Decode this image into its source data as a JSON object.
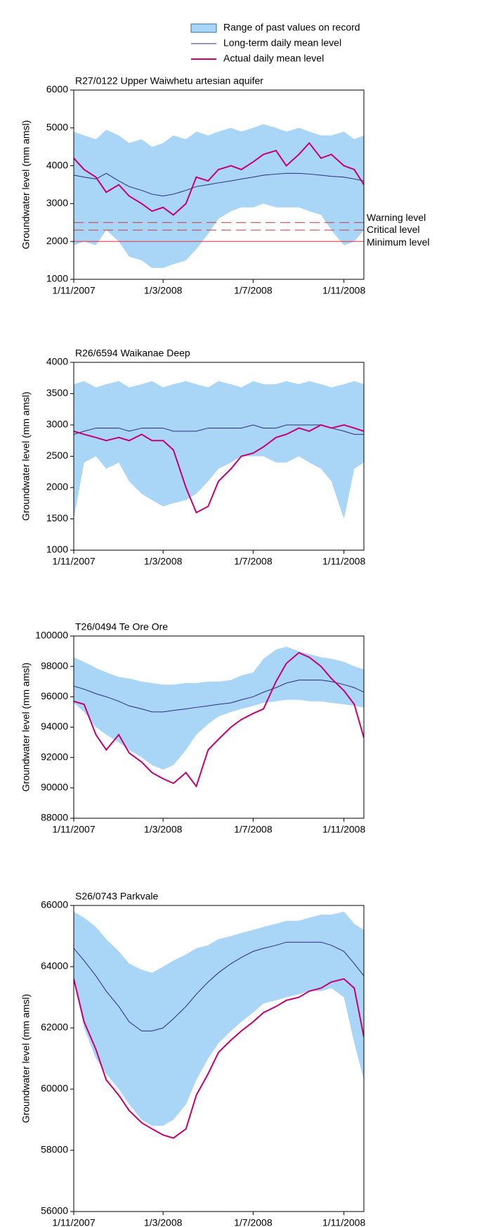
{
  "chart_data": [
    {
      "type": "line",
      "title": "R27/0122 Upper Waiwhetu artesian aquifer",
      "ylabel": "Groundwater level (mm amsl)",
      "x": [
        "1/11/2007",
        "15/11/2007",
        "1/12/2007",
        "15/12/2007",
        "1/1/2008",
        "15/1/2008",
        "1/2/2008",
        "15/2/2008",
        "1/3/2008",
        "15/3/2008",
        "1/4/2008",
        "15/4/2008",
        "1/5/2008",
        "15/5/2008",
        "1/6/2008",
        "15/6/2008",
        "1/7/2008",
        "15/7/2008",
        "1/8/2008",
        "15/8/2008",
        "1/9/2008",
        "15/9/2008",
        "1/10/2008",
        "15/10/2008",
        "1/11/2008",
        "15/11/2008",
        "28/11/2008"
      ],
      "xlim": [
        "1/11/2007",
        "28/11/2008"
      ],
      "xticks": [
        "1/11/2007",
        "1/3/2008",
        "1/7/2008",
        "1/11/2008"
      ],
      "ylim": [
        1000,
        6000
      ],
      "yticks": [
        1000,
        2000,
        3000,
        4000,
        5000,
        6000
      ],
      "series": [
        {
          "name": "Range of past values on record",
          "color": "#a9d5f7",
          "high": [
            4900,
            4800,
            4700,
            4950,
            4800,
            4600,
            4700,
            4500,
            4600,
            4800,
            4700,
            4900,
            4800,
            4900,
            5000,
            4900,
            5000,
            5100,
            5000,
            4900,
            5000,
            4900,
            4800,
            4800,
            4900,
            4700,
            4800
          ],
          "low": [
            1900,
            2000,
            1900,
            2300,
            2000,
            1600,
            1500,
            1300,
            1300,
            1400,
            1500,
            1800,
            2200,
            2600,
            2800,
            2900,
            2900,
            3000,
            2900,
            2900,
            2900,
            2800,
            2700,
            2300,
            1900,
            2000,
            2300
          ]
        },
        {
          "name": "Long-term daily mean level",
          "color": "#2b2b80",
          "values": [
            3750,
            3700,
            3650,
            3800,
            3600,
            3450,
            3350,
            3250,
            3200,
            3250,
            3350,
            3450,
            3500,
            3550,
            3600,
            3650,
            3700,
            3750,
            3780,
            3800,
            3800,
            3780,
            3750,
            3720,
            3700,
            3650,
            3600
          ]
        },
        {
          "name": "Actual daily mean level",
          "color": "#c8006e",
          "values": [
            4200,
            3900,
            3700,
            3300,
            3500,
            3200,
            3000,
            2800,
            2900,
            2700,
            3000,
            3700,
            3600,
            3900,
            4000,
            3900,
            4100,
            4300,
            4400,
            4000,
            4300,
            4600,
            4200,
            4300,
            4000,
            3900,
            3500
          ]
        }
      ],
      "reference_lines": [
        {
          "label": "Warning level",
          "value": 2500,
          "color": "#c0504d",
          "dashed": true
        },
        {
          "label": "Critical level",
          "value": 2300,
          "color": "#c0504d",
          "dashed": true
        },
        {
          "label": "Minimum level",
          "value": 2000,
          "color": "#e0404a",
          "dashed": false
        }
      ]
    },
    {
      "type": "line",
      "title": "R26/6594 Waikanae Deep",
      "ylabel": "Groundwater level (mm amsl)",
      "x": [
        "1/11/2007",
        "15/11/2007",
        "1/12/2007",
        "15/12/2007",
        "1/1/2008",
        "15/1/2008",
        "1/2/2008",
        "15/2/2008",
        "1/3/2008",
        "15/3/2008",
        "1/4/2008",
        "15/4/2008",
        "1/5/2008",
        "15/5/2008",
        "1/6/2008",
        "15/6/2008",
        "1/7/2008",
        "15/7/2008",
        "1/8/2008",
        "15/8/2008",
        "1/9/2008",
        "15/9/2008",
        "1/10/2008",
        "15/10/2008",
        "1/11/2008",
        "15/11/2008",
        "28/11/2008"
      ],
      "xlim": [
        "1/11/2007",
        "28/11/2008"
      ],
      "xticks": [
        "1/11/2007",
        "1/3/2008",
        "1/7/2008",
        "1/11/2008"
      ],
      "ylim": [
        1000,
        4000
      ],
      "yticks": [
        1000,
        1500,
        2000,
        2500,
        3000,
        3500,
        4000
      ],
      "series": [
        {
          "name": "Range of past values on record",
          "color": "#a9d5f7",
          "high": [
            3650,
            3700,
            3600,
            3650,
            3700,
            3600,
            3650,
            3700,
            3600,
            3650,
            3700,
            3650,
            3600,
            3700,
            3650,
            3600,
            3700,
            3650,
            3650,
            3700,
            3650,
            3700,
            3650,
            3600,
            3650,
            3700,
            3650
          ],
          "low": [
            1500,
            2400,
            2500,
            2300,
            2400,
            2100,
            1900,
            1800,
            1700,
            1750,
            1800,
            1900,
            2100,
            2300,
            2400,
            2500,
            2500,
            2500,
            2400,
            2400,
            2500,
            2400,
            2300,
            2100,
            1500,
            2300,
            2400
          ]
        },
        {
          "name": "Long-term daily mean level",
          "color": "#2b2b80",
          "values": [
            2850,
            2900,
            2950,
            2950,
            2950,
            2900,
            2950,
            2950,
            2950,
            2900,
            2900,
            2900,
            2950,
            2950,
            2950,
            2950,
            3000,
            2950,
            2950,
            3000,
            3000,
            3000,
            3000,
            2950,
            2900,
            2850,
            2850
          ]
        },
        {
          "name": "Actual daily mean level",
          "color": "#c8006e",
          "values": [
            2900,
            2850,
            2800,
            2750,
            2800,
            2750,
            2850,
            2750,
            2750,
            2600,
            2000,
            1600,
            1700,
            2100,
            2300,
            2500,
            2550,
            2650,
            2800,
            2850,
            2950,
            2900,
            3000,
            2950,
            3000,
            2950,
            2900
          ]
        }
      ]
    },
    {
      "type": "line",
      "title": "T26/0494 Te Ore Ore",
      "ylabel": "Groundwater level (mm amsl)",
      "x": [
        "1/11/2007",
        "15/11/2007",
        "1/12/2007",
        "15/12/2007",
        "1/1/2008",
        "15/1/2008",
        "1/2/2008",
        "15/2/2008",
        "1/3/2008",
        "15/3/2008",
        "1/4/2008",
        "15/4/2008",
        "1/5/2008",
        "15/5/2008",
        "1/6/2008",
        "15/6/2008",
        "1/7/2008",
        "15/7/2008",
        "1/8/2008",
        "15/8/2008",
        "1/9/2008",
        "15/9/2008",
        "1/10/2008",
        "15/10/2008",
        "1/11/2008",
        "15/11/2008",
        "28/11/2008"
      ],
      "xlim": [
        "1/11/2007",
        "28/11/2008"
      ],
      "xticks": [
        "1/11/2007",
        "1/3/2008",
        "1/7/2008",
        "1/11/2008"
      ],
      "ylim": [
        88000,
        100000
      ],
      "yticks": [
        88000,
        90000,
        92000,
        94000,
        96000,
        98000,
        100000
      ],
      "series": [
        {
          "name": "Range of past values on record",
          "color": "#a9d5f7",
          "high": [
            98600,
            98300,
            97900,
            97600,
            97300,
            97200,
            97000,
            96900,
            96800,
            96800,
            96900,
            96900,
            97000,
            97000,
            97100,
            97400,
            97600,
            98500,
            99100,
            99300,
            99000,
            98800,
            98600,
            98500,
            98300,
            98000,
            97800
          ],
          "low": [
            95600,
            95000,
            94000,
            93500,
            93000,
            92500,
            92000,
            91500,
            91200,
            91500,
            92500,
            93500,
            94200,
            94700,
            95000,
            95200,
            95400,
            95600,
            95700,
            95800,
            95800,
            95700,
            95700,
            95600,
            95500,
            95400,
            95300
          ]
        },
        {
          "name": "Long-term daily mean level",
          "color": "#2b2b80",
          "values": [
            96700,
            96500,
            96200,
            96000,
            95700,
            95400,
            95200,
            95000,
            95000,
            95100,
            95200,
            95300,
            95400,
            95500,
            95600,
            95800,
            96000,
            96300,
            96600,
            96900,
            97100,
            97100,
            97100,
            97000,
            96800,
            96600,
            96300
          ]
        },
        {
          "name": "Actual daily mean level",
          "color": "#c8006e",
          "values": [
            95700,
            95500,
            93500,
            92500,
            93500,
            92300,
            91700,
            91000,
            90600,
            90300,
            91000,
            90100,
            92500,
            93200,
            94000,
            94500,
            94900,
            95200,
            97000,
            98200,
            98900,
            98600,
            98000,
            97200,
            96400,
            95500,
            93300
          ]
        }
      ]
    },
    {
      "type": "line",
      "title": "S26/0743 Parkvale",
      "ylabel": "Groundwater level (mm amsl)",
      "x": [
        "1/11/2007",
        "15/11/2007",
        "1/12/2007",
        "15/12/2007",
        "1/1/2008",
        "15/1/2008",
        "1/2/2008",
        "15/2/2008",
        "1/3/2008",
        "15/3/2008",
        "1/4/2008",
        "15/4/2008",
        "1/5/2008",
        "15/5/2008",
        "1/6/2008",
        "15/6/2008",
        "1/7/2008",
        "15/7/2008",
        "1/8/2008",
        "15/8/2008",
        "1/9/2008",
        "15/9/2008",
        "1/10/2008",
        "15/10/2008",
        "1/11/2008",
        "15/11/2008",
        "28/11/2008"
      ],
      "xlim": [
        "1/11/2007",
        "28/11/2008"
      ],
      "xticks": [
        "1/11/2007",
        "1/3/2008",
        "1/7/2008",
        "1/11/2008"
      ],
      "ylim": [
        56000,
        66000
      ],
      "yticks": [
        56000,
        58000,
        60000,
        62000,
        64000,
        66000
      ],
      "series": [
        {
          "name": "Range of past values on record",
          "color": "#a9d5f7",
          "high": [
            65800,
            65600,
            65300,
            64900,
            64500,
            64100,
            63900,
            63800,
            64000,
            64200,
            64400,
            64600,
            64700,
            64900,
            65000,
            65100,
            65200,
            65300,
            65400,
            65500,
            65500,
            65600,
            65700,
            65700,
            65800,
            65400,
            65200
          ],
          "low": [
            63500,
            62000,
            61000,
            60500,
            60000,
            59500,
            59000,
            58800,
            58800,
            59000,
            59500,
            60300,
            61000,
            61500,
            61900,
            62200,
            62500,
            62800,
            62900,
            63000,
            63100,
            63200,
            63200,
            63300,
            63000,
            61500,
            60300
          ]
        },
        {
          "name": "Long-term daily mean level",
          "color": "#2b2b80",
          "values": [
            64600,
            64200,
            63700,
            63200,
            62700,
            62200,
            61900,
            61900,
            62000,
            62300,
            62700,
            63100,
            63500,
            63800,
            64100,
            64300,
            64500,
            64600,
            64700,
            64800,
            64800,
            64800,
            64800,
            64700,
            64500,
            64100,
            63700
          ]
        },
        {
          "name": "Actual daily mean level",
          "color": "#c8006e",
          "values": [
            63600,
            62200,
            61300,
            60300,
            59800,
            59300,
            58900,
            58700,
            58500,
            58400,
            58700,
            59800,
            60500,
            61200,
            61600,
            61900,
            62200,
            62500,
            62700,
            62900,
            63000,
            63200,
            63300,
            63500,
            63600,
            63300,
            61700
          ]
        }
      ]
    }
  ]
}
